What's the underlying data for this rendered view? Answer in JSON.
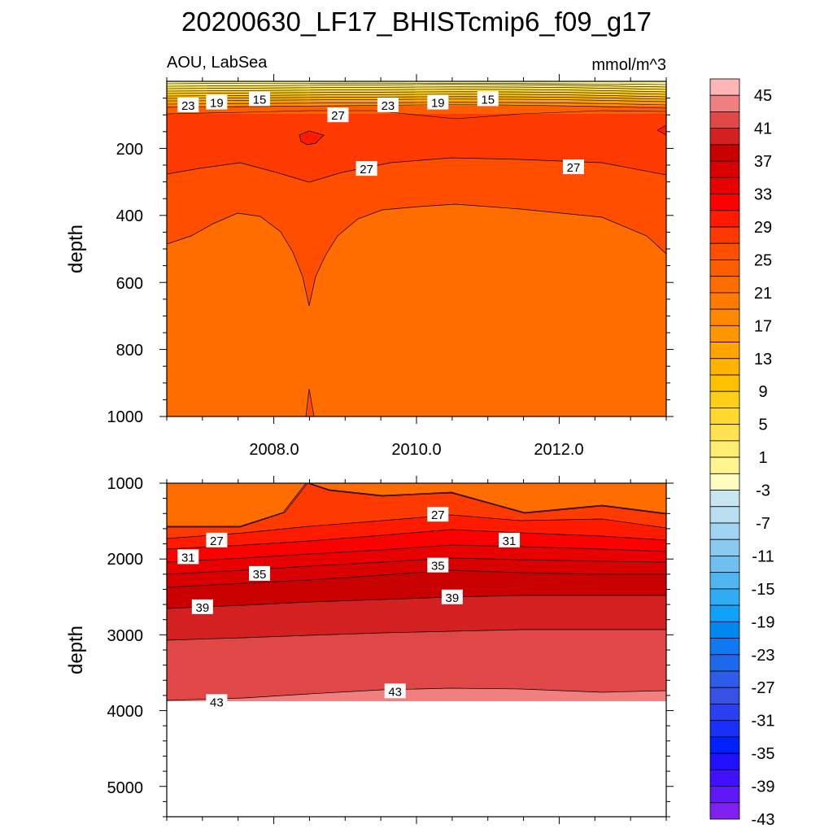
{
  "title": "20200630_LF17_BHISTcmip6_f09_g17",
  "subtitle_left": "AOU, LabSea",
  "subtitle_right": "mmol/m^3",
  "chart_data": [
    {
      "type": "contour",
      "panel": "upper",
      "ylabel": "depth",
      "ylim": [
        0,
        1000
      ],
      "xlim": [
        2006.5,
        2013.5
      ],
      "x_ticks": [
        2008.0,
        2010.0,
        2012.0
      ],
      "x_tick_labels": [
        "2008.0",
        "2010.0",
        "2012.0"
      ],
      "y_ticks": [
        200,
        400,
        600,
        800,
        1000
      ],
      "y_tick_labels": [
        "200",
        "400",
        "600",
        "800",
        "1000"
      ],
      "contour_labels": [
        {
          "text": "23",
          "x": 2006.8,
          "y": 70
        },
        {
          "text": "19",
          "x": 2007.2,
          "y": 62
        },
        {
          "text": "15",
          "x": 2007.8,
          "y": 52
        },
        {
          "text": "27",
          "x": 2008.9,
          "y": 100
        },
        {
          "text": "23",
          "x": 2009.6,
          "y": 70
        },
        {
          "text": "19",
          "x": 2010.3,
          "y": 62
        },
        {
          "text": "15",
          "x": 2011.0,
          "y": 52
        },
        {
          "text": "27",
          "x": 2009.3,
          "y": 260
        },
        {
          "text": "27",
          "x": 2012.2,
          "y": 255
        }
      ]
    },
    {
      "type": "contour",
      "panel": "lower",
      "ylabel": "depth",
      "ylim": [
        1000,
        5400
      ],
      "xlim": [
        2006.5,
        2013.5
      ],
      "y_ticks": [
        1000,
        2000,
        3000,
        4000,
        5000
      ],
      "y_tick_labels": [
        "1000",
        "2000",
        "3000",
        "4000",
        "5000"
      ],
      "contour_labels": [
        {
          "text": "27",
          "x": 2010.3,
          "y": 1410
        },
        {
          "text": "27",
          "x": 2007.2,
          "y": 1750
        },
        {
          "text": "31",
          "x": 2011.3,
          "y": 1750
        },
        {
          "text": "31",
          "x": 2006.8,
          "y": 1970
        },
        {
          "text": "35",
          "x": 2010.3,
          "y": 2080
        },
        {
          "text": "35",
          "x": 2007.8,
          "y": 2190
        },
        {
          "text": "39",
          "x": 2010.5,
          "y": 2500
        },
        {
          "text": "39",
          "x": 2007.0,
          "y": 2630
        },
        {
          "text": "43",
          "x": 2009.7,
          "y": 3740
        },
        {
          "text": "43",
          "x": 2007.2,
          "y": 3880
        }
      ]
    }
  ],
  "colorbar": {
    "labels": [
      "45",
      "41",
      "37",
      "33",
      "29",
      "25",
      "21",
      "17",
      "13",
      "9",
      "5",
      "1",
      "-3",
      "-7",
      "-11",
      "-15",
      "-19",
      "-23",
      "-27",
      "-31",
      "-35",
      "-39",
      "-43"
    ],
    "colors": [
      "#fdb5b5",
      "#f08080",
      "#e04848",
      "#d42020",
      "#c80000",
      "#d80000",
      "#e80000",
      "#fa0000",
      "#ff1a00",
      "#ff3a00",
      "#ff4e00",
      "#ff5e00",
      "#ff6c00",
      "#ff7a00",
      "#ff8800",
      "#ff9600",
      "#ffa400",
      "#ffb200",
      "#ffc000",
      "#ffce18",
      "#ffd830",
      "#ffe250",
      "#ffec70",
      "#fff490",
      "#fffcc0",
      "#c8e6f0",
      "#b8def0",
      "#a0d4f0",
      "#88caf0",
      "#6ec0f0",
      "#50b6f0",
      "#30acf4",
      "#10a2f8",
      "#0088f0",
      "#1078f0",
      "#1e68ec",
      "#2c5ce8",
      "#3850e4",
      "#2840f0",
      "#1830f8",
      "#0020ff",
      "#2010ff",
      "#4010ff",
      "#6018f8",
      "#8020f0"
    ]
  }
}
